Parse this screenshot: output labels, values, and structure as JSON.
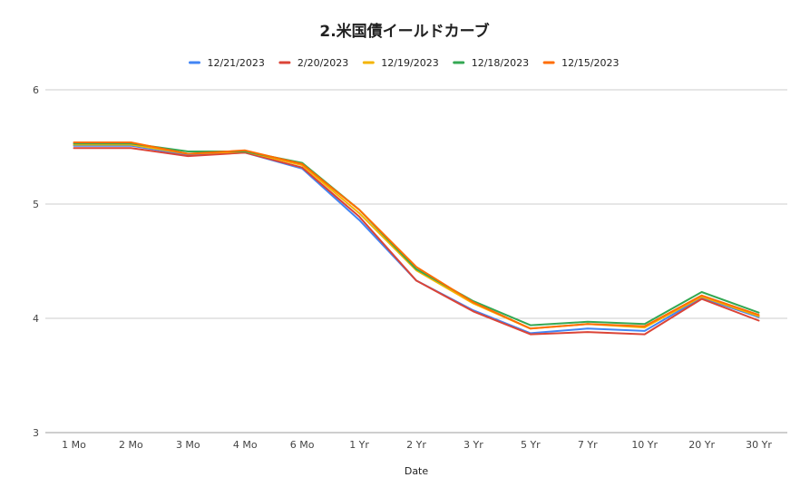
{
  "chart_data": {
    "type": "line",
    "title": "2.米国債イールドカーブ",
    "xlabel": "Date",
    "ylabel": "",
    "categories": [
      "1 Mo",
      "2 Mo",
      "3 Mo",
      "4 Mo",
      "6 Mo",
      "1 Yr",
      "2 Yr",
      "3 Yr",
      "5 Yr",
      "7 Yr",
      "10 Yr",
      "20 Yr",
      "30 Yr"
    ],
    "ylim": [
      3,
      6
    ],
    "yticks": [
      3,
      4,
      5,
      6
    ],
    "grid": true,
    "legend": "top",
    "series": [
      {
        "name": "12/21/2023",
        "color": "#4285f4",
        "values": [
          5.51,
          5.51,
          5.43,
          5.45,
          5.31,
          4.86,
          4.33,
          4.07,
          3.87,
          3.91,
          3.89,
          4.18,
          4.01
        ]
      },
      {
        "name": "2/20/2023",
        "color": "#db4437",
        "values": [
          5.49,
          5.49,
          5.42,
          5.45,
          5.32,
          4.89,
          4.33,
          4.06,
          3.86,
          3.88,
          3.86,
          4.17,
          3.98
        ]
      },
      {
        "name": "12/19/2023",
        "color": "#f4b400",
        "values": [
          5.52,
          5.52,
          5.44,
          5.46,
          5.34,
          4.92,
          4.42,
          4.13,
          3.91,
          3.95,
          3.92,
          4.19,
          4.02
        ]
      },
      {
        "name": "12/18/2023",
        "color": "#34a853",
        "values": [
          5.53,
          5.53,
          5.46,
          5.46,
          5.36,
          4.95,
          4.43,
          4.15,
          3.94,
          3.97,
          3.95,
          4.23,
          4.05
        ]
      },
      {
        "name": "12/15/2023",
        "color": "#ff6d01",
        "values": [
          5.54,
          5.54,
          5.44,
          5.47,
          5.35,
          4.95,
          4.45,
          4.14,
          3.91,
          3.95,
          3.93,
          4.2,
          4.03
        ]
      }
    ]
  }
}
